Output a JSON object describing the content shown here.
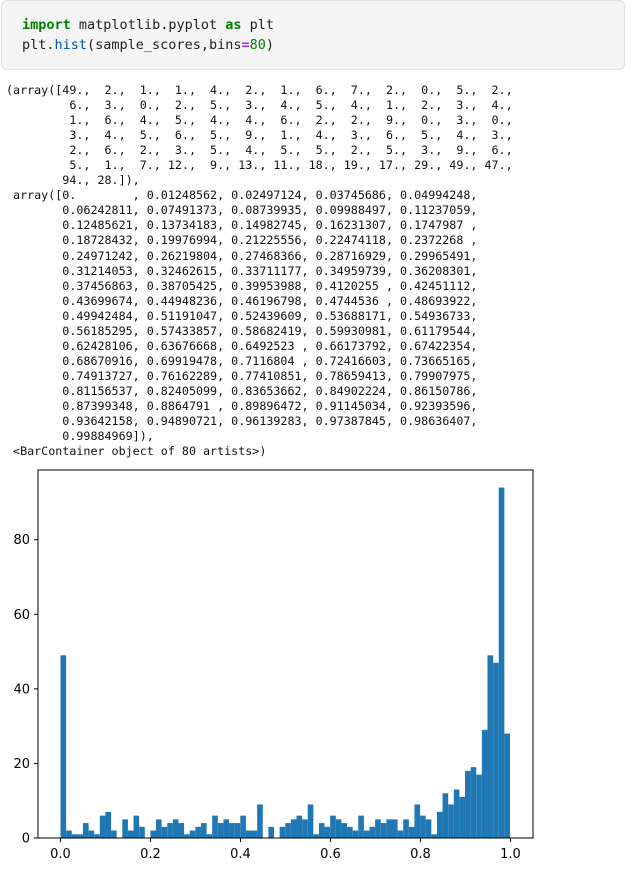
{
  "code": {
    "line1": {
      "kw_import": "import",
      "module": "matplotlib.pyplot",
      "kw_as": "as",
      "alias": "plt"
    },
    "line2": {
      "obj": "plt.",
      "func": "hist",
      "args": "(sample_scores,bins",
      "eq": "=",
      "bins": "80",
      "close": ")"
    }
  },
  "output": {
    "lines": [
      "(array([49.,  2.,  1.,  1.,  4.,  2.,  1.,  6.,  7.,  2.,  0.,  5.,  2.,",
      "         6.,  3.,  0.,  2.,  5.,  3.,  4.,  5.,  4.,  1.,  2.,  3.,  4.,",
      "         1.,  6.,  4.,  5.,  4.,  4.,  6.,  2.,  2.,  9.,  0.,  3.,  0.,",
      "         3.,  4.,  5.,  6.,  5.,  9.,  1.,  4.,  3.,  6.,  5.,  4.,  3.,",
      "         2.,  6.,  2.,  3.,  5.,  4.,  5.,  5.,  2.,  5.,  3.,  9.,  6.,",
      "         5.,  1.,  7., 12.,  9., 13., 11., 18., 19., 17., 29., 49., 47.,",
      "        94., 28.]),",
      " array([0.        , 0.01248562, 0.02497124, 0.03745686, 0.04994248,",
      "        0.06242811, 0.07491373, 0.08739935, 0.09988497, 0.11237059,",
      "        0.12485621, 0.13734183, 0.14982745, 0.16231307, 0.1747987 ,",
      "        0.18728432, 0.19976994, 0.21225556, 0.22474118, 0.2372268 ,",
      "        0.24971242, 0.26219804, 0.27468366, 0.28716929, 0.29965491,",
      "        0.31214053, 0.32462615, 0.33711177, 0.34959739, 0.36208301,",
      "        0.37456863, 0.38705425, 0.39953988, 0.4120255 , 0.42451112,",
      "        0.43699674, 0.44948236, 0.46196798, 0.4744536 , 0.48693922,",
      "        0.49942484, 0.51191047, 0.52439609, 0.53688171, 0.54936733,",
      "        0.56185295, 0.57433857, 0.58682419, 0.59930981, 0.61179544,",
      "        0.62428106, 0.63676668, 0.6492523 , 0.66173792, 0.67422354,",
      "        0.68670916, 0.69919478, 0.7116804 , 0.72416603, 0.73665165,",
      "        0.74913727, 0.76162289, 0.77410851, 0.78659413, 0.79907975,",
      "        0.81156537, 0.82405099, 0.83653662, 0.84902224, 0.86150786,",
      "        0.87399348, 0.8864791 , 0.89896472, 0.91145034, 0.92393596,",
      "        0.93642158, 0.94890721, 0.96139283, 0.97387845, 0.98636407,",
      "        0.99884969]),",
      " <BarContainer object of 80 artists>)"
    ]
  },
  "chart_data": {
    "type": "bar",
    "bar_color": "#1f77b4",
    "x_start": 0.0,
    "bin_width": 0.01248562,
    "values": [
      49,
      2,
      1,
      1,
      4,
      2,
      1,
      6,
      7,
      2,
      0,
      5,
      2,
      6,
      3,
      0,
      2,
      5,
      3,
      4,
      5,
      4,
      1,
      2,
      3,
      4,
      1,
      6,
      4,
      5,
      4,
      4,
      6,
      2,
      2,
      9,
      0,
      3,
      0,
      3,
      4,
      5,
      6,
      5,
      9,
      1,
      4,
      3,
      6,
      5,
      4,
      3,
      2,
      6,
      2,
      3,
      5,
      4,
      5,
      5,
      2,
      5,
      3,
      9,
      6,
      5,
      1,
      7,
      12,
      9,
      13,
      11,
      18,
      19,
      17,
      29,
      49,
      47,
      94,
      28
    ],
    "xlim": [
      -0.05,
      1.05
    ],
    "ylim": [
      0,
      98.7
    ],
    "xticks": [
      "0.0",
      "0.2",
      "0.4",
      "0.6",
      "0.8",
      "1.0"
    ],
    "xtick_values": [
      0.0,
      0.2,
      0.4,
      0.6,
      0.8,
      1.0
    ],
    "yticks": [
      "0",
      "20",
      "40",
      "60",
      "80"
    ],
    "ytick_values": [
      0,
      20,
      40,
      60,
      80
    ],
    "title": "",
    "xlabel": "",
    "ylabel": "",
    "grid": false
  }
}
